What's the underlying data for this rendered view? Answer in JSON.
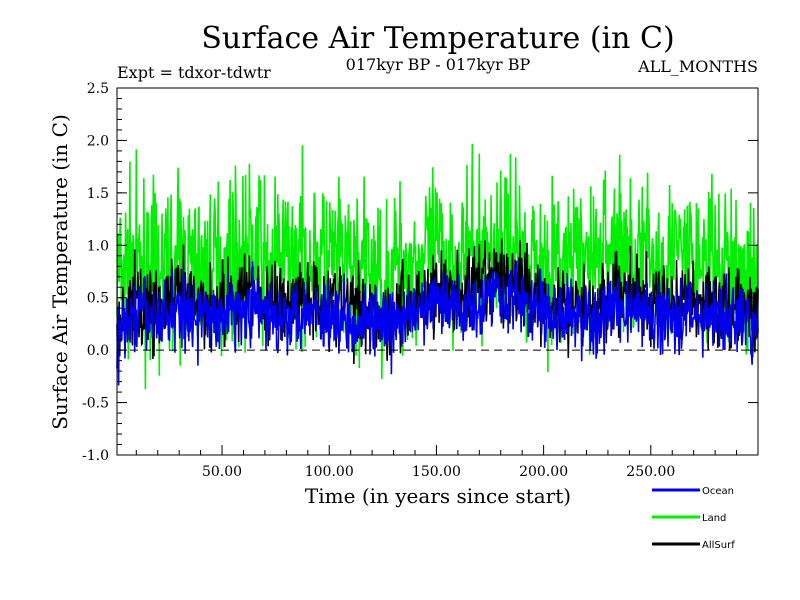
{
  "chart_data": {
    "type": "line",
    "title": "Surface Air Temperature (in C)",
    "subtitle_left": "Expt = tdxor-tdwtr",
    "subtitle_center": "017kyr BP - 017kyr BP",
    "subtitle_right": "ALL_MONTHS",
    "xlabel": "Time (in years since start)",
    "ylabel": "Surface Air Temperature (in C)",
    "xlim": [
      1,
      300
    ],
    "ylim": [
      -1.0,
      2.5
    ],
    "x_ticks": [
      50,
      100,
      150,
      200,
      250
    ],
    "x_tick_labels": [
      "50.00",
      "100.00",
      "150.00",
      "200.00",
      "250.00"
    ],
    "y_ticks": [
      -1.0,
      -0.5,
      0.0,
      0.5,
      1.0,
      1.5,
      2.0,
      2.5
    ],
    "y_tick_labels": [
      "-1.0",
      "-0.5",
      "0.0",
      "0.5",
      "1.0",
      "1.5",
      "2.0",
      "2.5"
    ],
    "reference_line": 0.0,
    "legend_position": "bottom-right",
    "series": [
      {
        "name": "Land",
        "color": "#00ee00",
        "x": [
          1,
          10,
          20,
          30,
          40,
          50,
          60,
          65,
          70,
          80,
          90,
          100,
          110,
          120,
          127,
          130,
          140,
          150,
          160,
          170,
          175,
          185,
          190,
          200,
          210,
          220,
          225,
          230,
          235,
          240,
          250,
          260,
          270,
          280,
          290,
          298
        ],
        "y": [
          0.7,
          0.8,
          0.7,
          0.85,
          0.75,
          0.8,
          0.9,
          1.0,
          0.8,
          0.85,
          0.9,
          0.85,
          0.8,
          0.75,
          0.6,
          0.8,
          0.85,
          0.9,
          0.85,
          0.9,
          1.0,
          1.0,
          0.9,
          0.85,
          0.8,
          0.85,
          0.9,
          0.95,
          1.1,
          0.9,
          0.85,
          0.9,
          0.85,
          0.8,
          0.75,
          0.6
        ]
      },
      {
        "name": "Ocean",
        "color": "#0000ee",
        "x": [
          1,
          10,
          20,
          30,
          40,
          50,
          60,
          65,
          70,
          80,
          90,
          100,
          110,
          120,
          127,
          130,
          140,
          150,
          160,
          170,
          175,
          185,
          190,
          200,
          210,
          220,
          225,
          230,
          235,
          240,
          250,
          260,
          270,
          280,
          290,
          298
        ],
        "y": [
          0.1,
          0.35,
          0.3,
          0.4,
          0.3,
          0.35,
          0.4,
          0.45,
          0.3,
          0.35,
          0.4,
          0.35,
          0.3,
          0.3,
          0.15,
          0.25,
          0.35,
          0.45,
          0.4,
          0.45,
          0.55,
          0.55,
          0.45,
          0.35,
          0.3,
          0.35,
          0.2,
          0.35,
          0.45,
          0.4,
          0.3,
          0.35,
          0.35,
          0.3,
          0.3,
          0.2
        ]
      },
      {
        "name": "AllSurf",
        "color": "#000000",
        "x": [
          1,
          10,
          20,
          30,
          40,
          50,
          60,
          65,
          70,
          80,
          90,
          100,
          110,
          120,
          127,
          130,
          140,
          150,
          160,
          170,
          175,
          185,
          190,
          200,
          210,
          220,
          225,
          230,
          235,
          240,
          250,
          260,
          270,
          280,
          290,
          298
        ],
        "y": [
          0.25,
          0.45,
          0.4,
          0.5,
          0.42,
          0.47,
          0.52,
          0.6,
          0.42,
          0.48,
          0.52,
          0.47,
          0.42,
          0.42,
          0.27,
          0.37,
          0.47,
          0.57,
          0.52,
          0.57,
          0.67,
          0.67,
          0.57,
          0.47,
          0.42,
          0.47,
          0.35,
          0.48,
          0.58,
          0.52,
          0.42,
          0.47,
          0.47,
          0.42,
          0.42,
          0.3
        ]
      }
    ]
  }
}
